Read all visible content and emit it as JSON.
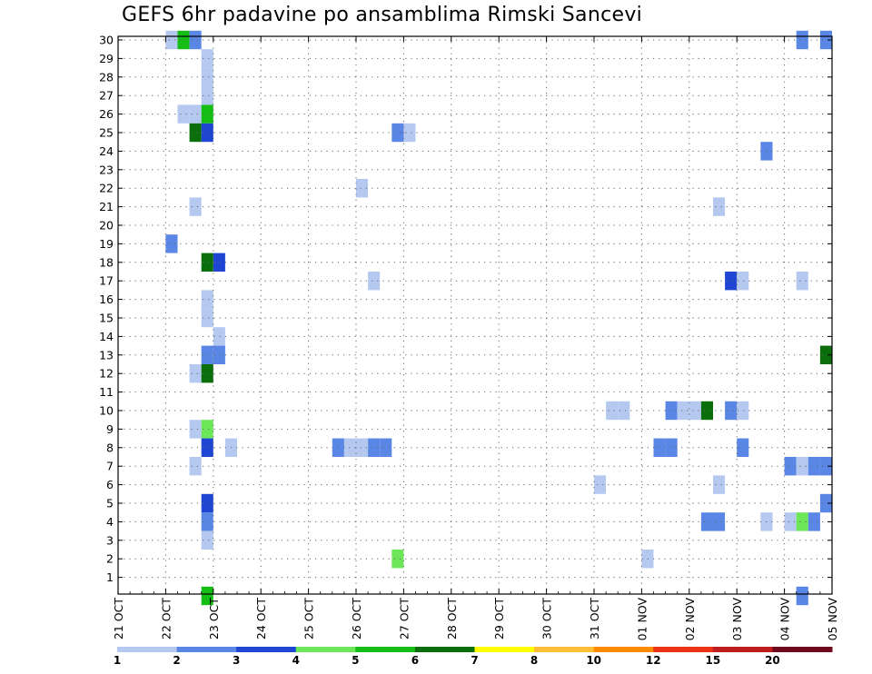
{
  "chart_data": {
    "type": "heatmap",
    "title": "GEFS 6hr padavine po ansamblima Rimski Sancevi",
    "xlabel": "",
    "ylabel": "",
    "x_ticks": [
      "21 OCT",
      "22 OCT",
      "23 OCT",
      "24 OCT",
      "25 OCT",
      "26 OCT",
      "27 OCT",
      "28 OCT",
      "29 OCT",
      "30 OCT",
      "31 OCT",
      "01 NOV",
      "02 NOV",
      "03 NOV",
      "04 NOV",
      "05 NOV"
    ],
    "x_unit": "6-hour steps from 21 OCT 00z",
    "x_range": [
      0,
      60
    ],
    "y_ticks": [
      1,
      2,
      3,
      4,
      5,
      6,
      7,
      8,
      9,
      10,
      11,
      12,
      13,
      14,
      15,
      16,
      17,
      18,
      19,
      20,
      21,
      22,
      23,
      24,
      25,
      26,
      27,
      28,
      29,
      30
    ],
    "y_range": [
      0,
      30
    ],
    "y_meaning": "ensemble member",
    "grid": true,
    "legend": {
      "placement": "bottom",
      "levels": [
        "1",
        "2",
        "3",
        "4",
        "5",
        "6",
        "7",
        "8",
        "10",
        "12",
        "15",
        "20"
      ],
      "colors": [
        "#b4c8f0",
        "#5a87e6",
        "#1e46d2",
        "#6ee65a",
        "#14be14",
        "#0a6e0a",
        "#ffff00",
        "#ffbe37",
        "#ff8c00",
        "#eb3214",
        "#be1e1e",
        "#6e0a1e"
      ]
    },
    "cells": [
      {
        "m": 30,
        "t": 4,
        "c": 0
      },
      {
        "m": 30,
        "t": 5,
        "c": 4
      },
      {
        "m": 30,
        "t": 6,
        "c": 1
      },
      {
        "m": 30,
        "t": 57,
        "c": 1
      },
      {
        "m": 30,
        "t": 59,
        "c": 1
      },
      {
        "m": 29,
        "t": 7,
        "c": 0
      },
      {
        "m": 28,
        "t": 7,
        "c": 0
      },
      {
        "m": 27,
        "t": 7,
        "c": 0
      },
      {
        "m": 26,
        "t": 5,
        "c": 0
      },
      {
        "m": 26,
        "t": 6,
        "c": 0
      },
      {
        "m": 26,
        "t": 7,
        "c": 4
      },
      {
        "m": 25,
        "t": 6,
        "c": 5
      },
      {
        "m": 25,
        "t": 7,
        "c": 2
      },
      {
        "m": 25,
        "t": 23,
        "c": 1
      },
      {
        "m": 25,
        "t": 24,
        "c": 0
      },
      {
        "m": 24,
        "t": 54,
        "c": 1
      },
      {
        "m": 22,
        "t": 20,
        "c": 0
      },
      {
        "m": 21,
        "t": 6,
        "c": 0
      },
      {
        "m": 21,
        "t": 50,
        "c": 0
      },
      {
        "m": 19,
        "t": 4,
        "c": 1
      },
      {
        "m": 18,
        "t": 7,
        "c": 5
      },
      {
        "m": 18,
        "t": 8,
        "c": 2
      },
      {
        "m": 17,
        "t": 21,
        "c": 0
      },
      {
        "m": 17,
        "t": 51,
        "c": 2
      },
      {
        "m": 17,
        "t": 52,
        "c": 0
      },
      {
        "m": 17,
        "t": 57,
        "c": 0
      },
      {
        "m": 16,
        "t": 7,
        "c": 0
      },
      {
        "m": 15,
        "t": 7,
        "c": 0
      },
      {
        "m": 14,
        "t": 8,
        "c": 0
      },
      {
        "m": 13,
        "t": 7,
        "c": 1
      },
      {
        "m": 13,
        "t": 8,
        "c": 1
      },
      {
        "m": 13,
        "t": 59,
        "c": 5
      },
      {
        "m": 12,
        "t": 6,
        "c": 0
      },
      {
        "m": 12,
        "t": 7,
        "c": 5
      },
      {
        "m": 10,
        "t": 41,
        "c": 0
      },
      {
        "m": 10,
        "t": 42,
        "c": 0
      },
      {
        "m": 10,
        "t": 46,
        "c": 1
      },
      {
        "m": 10,
        "t": 47,
        "c": 0
      },
      {
        "m": 10,
        "t": 48,
        "c": 0
      },
      {
        "m": 10,
        "t": 49,
        "c": 5
      },
      {
        "m": 10,
        "t": 51,
        "c": 1
      },
      {
        "m": 10,
        "t": 52,
        "c": 0
      },
      {
        "m": 9,
        "t": 6,
        "c": 0
      },
      {
        "m": 9,
        "t": 7,
        "c": 3
      },
      {
        "m": 8,
        "t": 7,
        "c": 2
      },
      {
        "m": 8,
        "t": 9,
        "c": 0
      },
      {
        "m": 8,
        "t": 18,
        "c": 1
      },
      {
        "m": 8,
        "t": 19,
        "c": 0
      },
      {
        "m": 8,
        "t": 20,
        "c": 0
      },
      {
        "m": 8,
        "t": 21,
        "c": 1
      },
      {
        "m": 8,
        "t": 22,
        "c": 1
      },
      {
        "m": 8,
        "t": 45,
        "c": 1
      },
      {
        "m": 8,
        "t": 46,
        "c": 1
      },
      {
        "m": 8,
        "t": 52,
        "c": 1
      },
      {
        "m": 7,
        "t": 6,
        "c": 0
      },
      {
        "m": 7,
        "t": 56,
        "c": 1
      },
      {
        "m": 7,
        "t": 57,
        "c": 0
      },
      {
        "m": 7,
        "t": 58,
        "c": 1
      },
      {
        "m": 7,
        "t": 59,
        "c": 1
      },
      {
        "m": 6,
        "t": 40,
        "c": 0
      },
      {
        "m": 6,
        "t": 50,
        "c": 0
      },
      {
        "m": 5,
        "t": 7,
        "c": 2
      },
      {
        "m": 5,
        "t": 59,
        "c": 1
      },
      {
        "m": 5,
        "t": 60,
        "c": 4
      },
      {
        "m": 4,
        "t": 7,
        "c": 1
      },
      {
        "m": 4,
        "t": 49,
        "c": 1
      },
      {
        "m": 4,
        "t": 50,
        "c": 1
      },
      {
        "m": 4,
        "t": 54,
        "c": 0
      },
      {
        "m": 4,
        "t": 56,
        "c": 0
      },
      {
        "m": 4,
        "t": 57,
        "c": 3
      },
      {
        "m": 4,
        "t": 58,
        "c": 1
      },
      {
        "m": 3,
        "t": 7,
        "c": 0
      },
      {
        "m": 2,
        "t": 23,
        "c": 3
      },
      {
        "m": 2,
        "t": 44,
        "c": 0
      },
      {
        "m": 0,
        "t": 7,
        "c": 4
      },
      {
        "m": 0,
        "t": 57,
        "c": 1
      }
    ]
  }
}
